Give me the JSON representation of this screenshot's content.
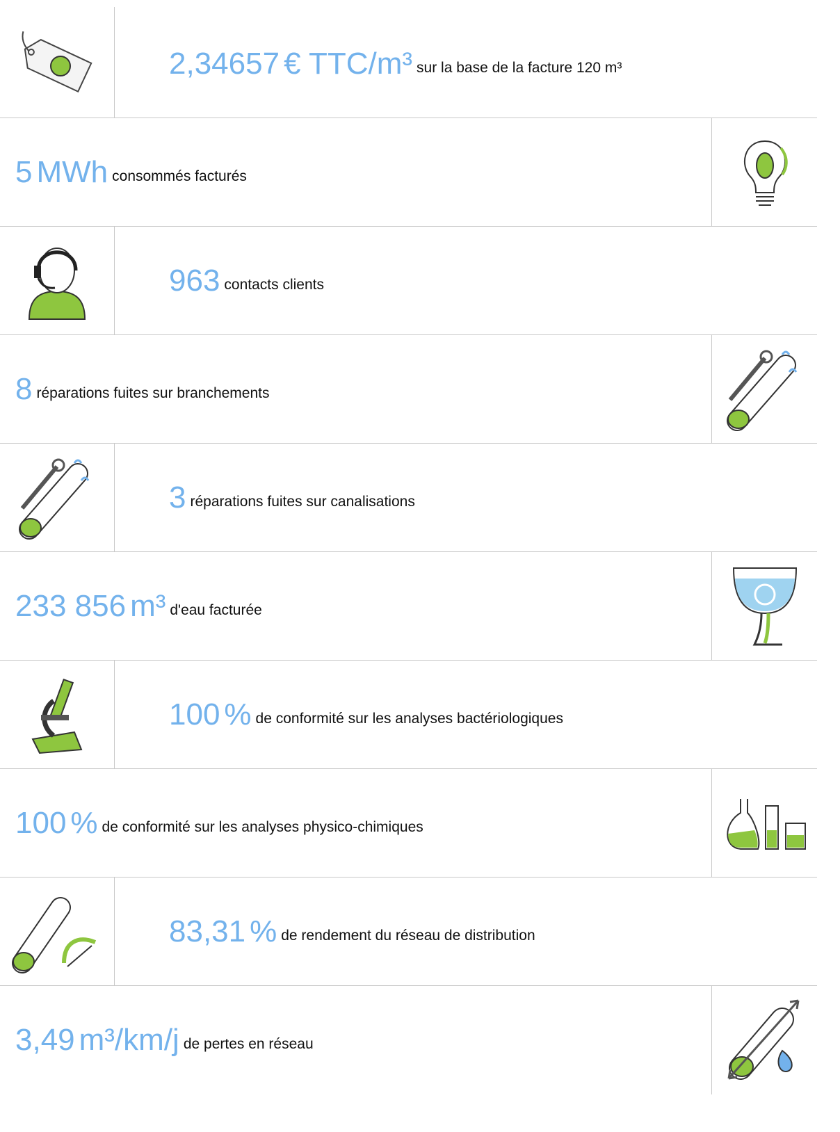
{
  "items": [
    {
      "value": "2,34657",
      "unit": "€ TTC/m³",
      "label": "sur la base de la facture 120 m³"
    },
    {
      "value": "5",
      "unit": "MWh",
      "label": "consommés facturés"
    },
    {
      "value": "963",
      "unit": "",
      "label": "contacts clients"
    },
    {
      "value": "8",
      "unit": "",
      "label": "réparations fuites sur branchements"
    },
    {
      "value": "3",
      "unit": "",
      "label": "réparations fuites sur canalisations"
    },
    {
      "value": "233 856",
      "unit": "m³",
      "label": "d'eau facturée"
    },
    {
      "value": "100",
      "unit": "%",
      "label": "de conformité sur les analyses bactériologiques"
    },
    {
      "value": "100",
      "unit": "%",
      "label": "de conformité sur les analyses physico-chimiques"
    },
    {
      "value": "83,31",
      "unit": "%",
      "label": "de rendement du réseau de distribution"
    },
    {
      "value": "3,49",
      "unit": "m³/km/j",
      "label": "de pertes en réseau"
    }
  ]
}
